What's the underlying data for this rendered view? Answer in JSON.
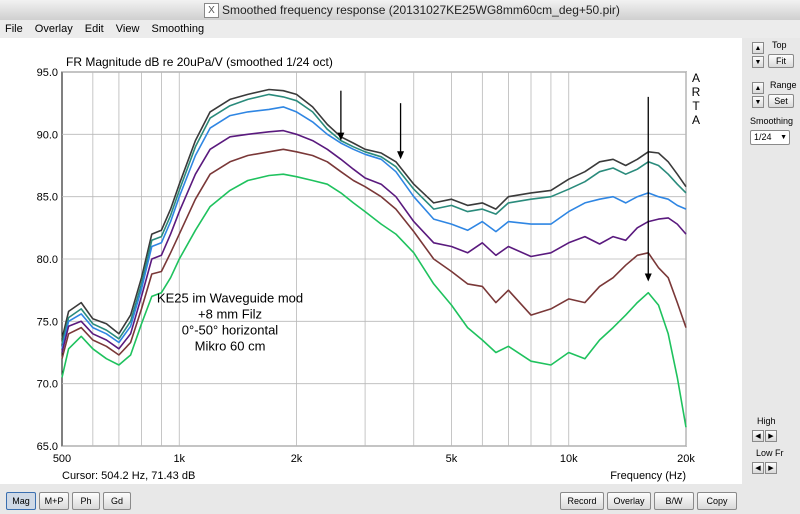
{
  "window": {
    "title": "Smoothed frequency response (20131027KE25WG8mm60cm_deg+50.pir)"
  },
  "menu": [
    "File",
    "Overlay",
    "Edit",
    "View",
    "Smoothing"
  ],
  "right_panel": {
    "top_label": "Top",
    "fit_label": "Fit",
    "range_label": "Range",
    "set_label": "Set",
    "smoothing_label": "Smoothing",
    "smoothing_value": "1/24",
    "high_label": "High",
    "lowfr_label": "Low Fr"
  },
  "bottom_bar": {
    "left_buttons": [
      "Mag",
      "M+P",
      "Ph",
      "Gd"
    ],
    "right_buttons": [
      "Record",
      "Overlay",
      "B/W",
      "Copy"
    ]
  },
  "colors": {
    "black": "#3a3a3a",
    "teal": "#2a8b7c",
    "blue": "#2f86e3",
    "purple": "#5a1a7e",
    "brown": "#7a3838",
    "green": "#1fc25e"
  },
  "chart_data": {
    "type": "line",
    "title": "FR Magnitude dB re 20uPa/V (smoothed 1/24 oct)",
    "brand": [
      "A",
      "R",
      "T",
      "A"
    ],
    "xlabel": "Frequency (Hz)",
    "cursor": "Cursor: 504.2 Hz, 71.43 dB",
    "xscale": "log",
    "xlim": [
      500,
      20000
    ],
    "ylim": [
      65,
      95
    ],
    "grid": true,
    "xticks": [
      {
        "v": 500,
        "t": "500"
      },
      {
        "v": 1000,
        "t": "1k"
      },
      {
        "v": 2000,
        "t": "2k"
      },
      {
        "v": 5000,
        "t": "5k"
      },
      {
        "v": 10000,
        "t": "10k"
      },
      {
        "v": 20000,
        "t": "20k"
      }
    ],
    "yticks": [
      {
        "v": 65,
        "t": "65.0"
      },
      {
        "v": 70,
        "t": "70.0"
      },
      {
        "v": 75,
        "t": "75.0"
      },
      {
        "v": 80,
        "t": "80.0"
      },
      {
        "v": 85,
        "t": "85.0"
      },
      {
        "v": 90,
        "t": "90.0"
      },
      {
        "v": 95,
        "t": "95.0"
      }
    ],
    "annotation": [
      "KE25 im Waveguide mod",
      "+8 mm Filz",
      "0°-50° horizontal",
      "Mikro 60 cm"
    ],
    "arrows": [
      {
        "x": 2600,
        "y_from": 93.5,
        "y_to": 89.5
      },
      {
        "x": 3700,
        "y_from": 92.5,
        "y_to": 88.0
      },
      {
        "x": 16000,
        "y_from": 93.0,
        "y_to": 78.2
      }
    ],
    "series": [
      {
        "color": "black",
        "points": [
          [
            500,
            73.6
          ],
          [
            520,
            75.8
          ],
          [
            560,
            76.5
          ],
          [
            600,
            75.2
          ],
          [
            650,
            74.8
          ],
          [
            700,
            74.0
          ],
          [
            750,
            75.5
          ],
          [
            800,
            78.5
          ],
          [
            850,
            82.0
          ],
          [
            900,
            82.3
          ],
          [
            950,
            84.0
          ],
          [
            1000,
            86.0
          ],
          [
            1100,
            89.5
          ],
          [
            1200,
            91.8
          ],
          [
            1350,
            92.8
          ],
          [
            1500,
            93.2
          ],
          [
            1700,
            93.6
          ],
          [
            1850,
            93.5
          ],
          [
            2000,
            93.2
          ],
          [
            2200,
            92.2
          ],
          [
            2400,
            90.8
          ],
          [
            2600,
            89.8
          ],
          [
            2800,
            89.3
          ],
          [
            3000,
            88.8
          ],
          [
            3300,
            88.5
          ],
          [
            3600,
            87.8
          ],
          [
            4000,
            86.0
          ],
          [
            4500,
            84.5
          ],
          [
            5000,
            84.8
          ],
          [
            5500,
            84.3
          ],
          [
            6000,
            84.5
          ],
          [
            6500,
            84.0
          ],
          [
            7000,
            85.0
          ],
          [
            8000,
            85.3
          ],
          [
            9000,
            85.5
          ],
          [
            10000,
            86.4
          ],
          [
            11000,
            87.0
          ],
          [
            12000,
            87.8
          ],
          [
            13000,
            88.0
          ],
          [
            14000,
            87.5
          ],
          [
            15000,
            88.0
          ],
          [
            16000,
            88.6
          ],
          [
            17000,
            88.5
          ],
          [
            18000,
            87.8
          ],
          [
            19000,
            86.8
          ],
          [
            20000,
            85.8
          ]
        ]
      },
      {
        "color": "teal",
        "points": [
          [
            500,
            73.2
          ],
          [
            520,
            75.3
          ],
          [
            560,
            76.0
          ],
          [
            600,
            74.8
          ],
          [
            650,
            74.3
          ],
          [
            700,
            73.6
          ],
          [
            750,
            75.0
          ],
          [
            800,
            78.0
          ],
          [
            850,
            81.5
          ],
          [
            900,
            81.8
          ],
          [
            950,
            83.5
          ],
          [
            1000,
            85.5
          ],
          [
            1100,
            89.0
          ],
          [
            1200,
            91.3
          ],
          [
            1350,
            92.3
          ],
          [
            1500,
            92.8
          ],
          [
            1700,
            93.2
          ],
          [
            1850,
            93.0
          ],
          [
            2000,
            92.7
          ],
          [
            2200,
            91.8
          ],
          [
            2400,
            90.4
          ],
          [
            2600,
            89.5
          ],
          [
            2800,
            89.0
          ],
          [
            3000,
            88.6
          ],
          [
            3300,
            88.2
          ],
          [
            3600,
            87.4
          ],
          [
            4000,
            85.6
          ],
          [
            4500,
            84.0
          ],
          [
            5000,
            84.3
          ],
          [
            5500,
            83.8
          ],
          [
            6000,
            84.0
          ],
          [
            6500,
            83.6
          ],
          [
            7000,
            84.5
          ],
          [
            8000,
            84.8
          ],
          [
            9000,
            85.0
          ],
          [
            10000,
            85.6
          ],
          [
            11000,
            86.2
          ],
          [
            12000,
            87.0
          ],
          [
            13000,
            87.3
          ],
          [
            14000,
            86.8
          ],
          [
            15000,
            87.2
          ],
          [
            16000,
            87.8
          ],
          [
            17000,
            87.5
          ],
          [
            18000,
            86.8
          ],
          [
            19000,
            86.0
          ],
          [
            20000,
            85.3
          ]
        ]
      },
      {
        "color": "blue",
        "points": [
          [
            500,
            72.8
          ],
          [
            520,
            75.0
          ],
          [
            560,
            75.6
          ],
          [
            600,
            74.5
          ],
          [
            650,
            74.0
          ],
          [
            700,
            73.3
          ],
          [
            750,
            74.6
          ],
          [
            800,
            77.6
          ],
          [
            850,
            81.0
          ],
          [
            900,
            81.3
          ],
          [
            950,
            83.0
          ],
          [
            1000,
            85.0
          ],
          [
            1100,
            88.3
          ],
          [
            1200,
            90.5
          ],
          [
            1350,
            91.5
          ],
          [
            1500,
            91.8
          ],
          [
            1700,
            92.0
          ],
          [
            1850,
            92.2
          ],
          [
            2000,
            91.8
          ],
          [
            2200,
            91.0
          ],
          [
            2400,
            90.0
          ],
          [
            2600,
            89.3
          ],
          [
            2800,
            88.8
          ],
          [
            3000,
            88.4
          ],
          [
            3300,
            88.0
          ],
          [
            3600,
            87.0
          ],
          [
            4000,
            85.0
          ],
          [
            4500,
            83.2
          ],
          [
            5000,
            82.8
          ],
          [
            5500,
            82.3
          ],
          [
            6000,
            83.0
          ],
          [
            6500,
            82.2
          ],
          [
            7000,
            83.0
          ],
          [
            8000,
            82.8
          ],
          [
            9000,
            82.8
          ],
          [
            10000,
            83.8
          ],
          [
            11000,
            84.5
          ],
          [
            12000,
            84.8
          ],
          [
            13000,
            85.0
          ],
          [
            14000,
            84.5
          ],
          [
            15000,
            85.0
          ],
          [
            16000,
            85.3
          ],
          [
            17000,
            85.0
          ],
          [
            18000,
            84.8
          ],
          [
            19000,
            84.3
          ],
          [
            20000,
            84.0
          ]
        ]
      },
      {
        "color": "purple",
        "points": [
          [
            500,
            72.5
          ],
          [
            520,
            74.6
          ],
          [
            560,
            75.0
          ],
          [
            600,
            74.0
          ],
          [
            650,
            73.5
          ],
          [
            700,
            72.8
          ],
          [
            750,
            74.0
          ],
          [
            800,
            77.0
          ],
          [
            850,
            80.0
          ],
          [
            900,
            80.3
          ],
          [
            950,
            82.0
          ],
          [
            1000,
            83.8
          ],
          [
            1100,
            86.8
          ],
          [
            1200,
            88.8
          ],
          [
            1350,
            89.8
          ],
          [
            1500,
            90.0
          ],
          [
            1700,
            90.2
          ],
          [
            1850,
            90.3
          ],
          [
            2000,
            90.0
          ],
          [
            2200,
            89.5
          ],
          [
            2400,
            88.8
          ],
          [
            2600,
            88.0
          ],
          [
            2800,
            87.2
          ],
          [
            3000,
            86.5
          ],
          [
            3300,
            86.0
          ],
          [
            3600,
            85.0
          ],
          [
            4000,
            83.0
          ],
          [
            4500,
            81.3
          ],
          [
            5000,
            81.0
          ],
          [
            5500,
            80.5
          ],
          [
            6000,
            81.3
          ],
          [
            6500,
            80.3
          ],
          [
            7000,
            81.0
          ],
          [
            8000,
            80.2
          ],
          [
            9000,
            80.5
          ],
          [
            10000,
            81.3
          ],
          [
            11000,
            81.8
          ],
          [
            12000,
            81.2
          ],
          [
            13000,
            81.8
          ],
          [
            14000,
            81.5
          ],
          [
            15000,
            82.5
          ],
          [
            16000,
            83.0
          ],
          [
            17000,
            83.2
          ],
          [
            18000,
            83.3
          ],
          [
            19000,
            82.8
          ],
          [
            20000,
            82.0
          ]
        ]
      },
      {
        "color": "brown",
        "points": [
          [
            500,
            72.0
          ],
          [
            520,
            74.0
          ],
          [
            560,
            74.5
          ],
          [
            600,
            73.5
          ],
          [
            650,
            73.0
          ],
          [
            700,
            72.3
          ],
          [
            750,
            73.3
          ],
          [
            800,
            76.0
          ],
          [
            850,
            78.8
          ],
          [
            900,
            79.0
          ],
          [
            950,
            80.5
          ],
          [
            1000,
            82.0
          ],
          [
            1100,
            84.8
          ],
          [
            1200,
            86.8
          ],
          [
            1350,
            87.8
          ],
          [
            1500,
            88.3
          ],
          [
            1700,
            88.6
          ],
          [
            1850,
            88.8
          ],
          [
            2000,
            88.6
          ],
          [
            2200,
            88.3
          ],
          [
            2400,
            87.8
          ],
          [
            2600,
            87.0
          ],
          [
            2800,
            86.3
          ],
          [
            3000,
            85.8
          ],
          [
            3300,
            85.0
          ],
          [
            3600,
            84.0
          ],
          [
            4000,
            82.2
          ],
          [
            4500,
            80.0
          ],
          [
            5000,
            79.0
          ],
          [
            5500,
            78.0
          ],
          [
            6000,
            77.8
          ],
          [
            6500,
            76.5
          ],
          [
            7000,
            77.5
          ],
          [
            8000,
            75.5
          ],
          [
            9000,
            76.0
          ],
          [
            10000,
            76.8
          ],
          [
            11000,
            76.5
          ],
          [
            12000,
            77.8
          ],
          [
            13000,
            78.5
          ],
          [
            14000,
            79.5
          ],
          [
            15000,
            80.3
          ],
          [
            16000,
            80.5
          ],
          [
            17000,
            79.3
          ],
          [
            18000,
            78.5
          ],
          [
            19000,
            76.5
          ],
          [
            20000,
            74.5
          ]
        ]
      },
      {
        "color": "green",
        "points": [
          [
            500,
            70.5
          ],
          [
            520,
            72.8
          ],
          [
            560,
            73.8
          ],
          [
            600,
            72.8
          ],
          [
            650,
            72.0
          ],
          [
            700,
            71.5
          ],
          [
            750,
            72.3
          ],
          [
            800,
            74.8
          ],
          [
            850,
            77.0
          ],
          [
            900,
            77.3
          ],
          [
            950,
            78.5
          ],
          [
            1000,
            80.0
          ],
          [
            1100,
            82.3
          ],
          [
            1200,
            84.2
          ],
          [
            1350,
            85.5
          ],
          [
            1500,
            86.3
          ],
          [
            1700,
            86.7
          ],
          [
            1850,
            86.8
          ],
          [
            2000,
            86.6
          ],
          [
            2200,
            86.3
          ],
          [
            2400,
            86.0
          ],
          [
            2600,
            85.3
          ],
          [
            2800,
            84.5
          ],
          [
            3000,
            83.8
          ],
          [
            3300,
            82.8
          ],
          [
            3600,
            82.0
          ],
          [
            4000,
            80.5
          ],
          [
            4500,
            78.0
          ],
          [
            5000,
            76.3
          ],
          [
            5500,
            74.5
          ],
          [
            6000,
            73.5
          ],
          [
            6500,
            72.5
          ],
          [
            7000,
            73.0
          ],
          [
            8000,
            71.8
          ],
          [
            9000,
            71.5
          ],
          [
            10000,
            72.5
          ],
          [
            11000,
            72.0
          ],
          [
            12000,
            73.5
          ],
          [
            13000,
            74.5
          ],
          [
            14000,
            75.5
          ],
          [
            15000,
            76.5
          ],
          [
            16000,
            77.3
          ],
          [
            17000,
            76.3
          ],
          [
            18000,
            74.0
          ],
          [
            19000,
            70.5
          ],
          [
            20000,
            66.5
          ]
        ]
      }
    ]
  }
}
